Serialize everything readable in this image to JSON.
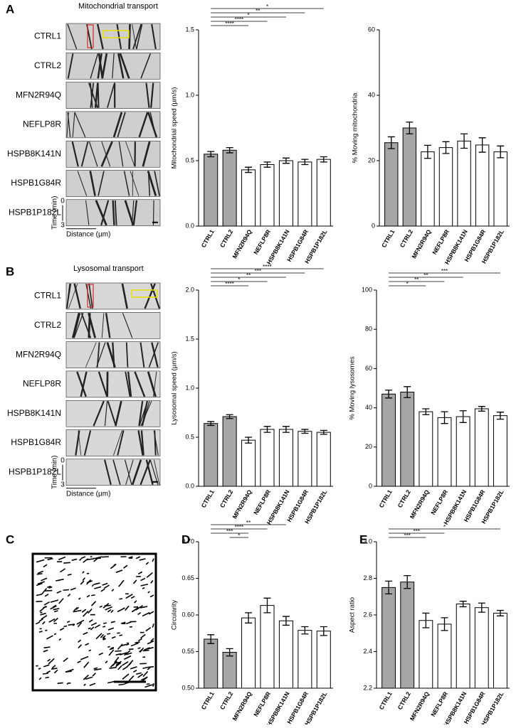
{
  "panel_letters": [
    "A",
    "B",
    "C",
    "D",
    "E"
  ],
  "kymographs": [
    {
      "title": "Mitochondrial transport",
      "rows": [
        "CTRL1",
        "CTRL2",
        "MFN2R94Q",
        "NEFLP8R",
        "HSPB8K141N",
        "HSPB1G84R",
        "HSPB1P182L"
      ]
    },
    {
      "title": "Lysosomal transport",
      "rows": [
        "CTRL1",
        "CTRL2",
        "MFN2R94Q",
        "NEFLP8R",
        "HSPB8K141N",
        "HSPB1G84R",
        "HSPB1P182L"
      ]
    }
  ],
  "kymo_axis": {
    "time": "Time (min)",
    "start": "0",
    "end": "3",
    "distance": "Distance (µm)"
  },
  "chart_data": [
    {
      "type": "bar",
      "ylabel": "Mitochondrial speed (µm/s)",
      "categories": [
        "CTRL1",
        "CTRL2",
        "MFN2R94Q",
        "NEFLP8R",
        "HSPB8K141N",
        "HSPB1G84R",
        "HSPB1P182L"
      ],
      "values": [
        0.55,
        0.58,
        0.43,
        0.47,
        0.5,
        0.49,
        0.51
      ],
      "errors": [
        0.02,
        0.02,
        0.02,
        0.02,
        0.02,
        0.02,
        0.02
      ],
      "colors": [
        "#a6a6a6",
        "#a6a6a6",
        "#ffffff",
        "#ffffff",
        "#ffffff",
        "#ffffff",
        "#ffffff"
      ],
      "ylim": [
        0,
        1.5
      ],
      "yticks": [
        {
          "value": 0,
          "label": "0.0"
        },
        0.5,
        {
          "value": 1,
          "label": "1.0"
        },
        1.5
      ],
      "significance": [
        {
          "label": "*",
          "from": "CTRL1",
          "to": "HSPB1P182L"
        },
        {
          "label": "**",
          "from": "CTRL1",
          "to": "HSPB1G84R"
        },
        {
          "label": "*",
          "from": "CTRL1",
          "to": "HSPB8K141N"
        },
        {
          "label": "****",
          "from": "CTRL1",
          "to": "NEFLP8R"
        },
        {
          "label": "****",
          "from": "CTRL1",
          "to": "MFN2R94Q"
        }
      ]
    },
    {
      "type": "bar",
      "ylabel": "% Moving mitochondria",
      "categories": [
        "CTRL1",
        "CTRL2",
        "MFN2R94Q",
        "NEFLP8R",
        "HSPB8K141N",
        "HSPB1G84R",
        "HSPB1P182L"
      ],
      "values": [
        25.5,
        30,
        22.7,
        24,
        26,
        24.8,
        22.7
      ],
      "errors": [
        1.8,
        1.8,
        2,
        1.8,
        2.2,
        2.2,
        1.8
      ],
      "colors": [
        "#a6a6a6",
        "#a6a6a6",
        "#ffffff",
        "#ffffff",
        "#ffffff",
        "#ffffff",
        "#ffffff"
      ],
      "ylim": [
        0,
        60
      ],
      "yticks": [
        0,
        20,
        40,
        60
      ],
      "significance": []
    },
    {
      "type": "bar",
      "ylabel": "Lysosomal speed (µm/s)",
      "categories": [
        "CTRL1",
        "CTRL2",
        "MFN2R94Q",
        "NEFLP8R",
        "HSPB8K141N",
        "HSPB1G84R",
        "HSPB1P182L"
      ],
      "values": [
        0.64,
        0.71,
        0.47,
        0.58,
        0.58,
        0.56,
        0.55
      ],
      "errors": [
        0.02,
        0.02,
        0.03,
        0.03,
        0.03,
        0.02,
        0.02
      ],
      "colors": [
        "#a6a6a6",
        "#a6a6a6",
        "#ffffff",
        "#ffffff",
        "#ffffff",
        "#ffffff",
        "#ffffff"
      ],
      "ylim": [
        0,
        2
      ],
      "yticks": [
        {
          "value": 0,
          "label": "0.0"
        },
        0.5,
        {
          "value": 1,
          "label": "1.0"
        },
        1.5,
        {
          "value": 2,
          "label": "2.0"
        }
      ],
      "significance": [
        {
          "label": "****",
          "from": "CTRL1",
          "to": "HSPB1P182L"
        },
        {
          "label": "***",
          "from": "CTRL1",
          "to": "HSPB1G84R"
        },
        {
          "label": "**",
          "from": "CTRL1",
          "to": "HSPB8K141N"
        },
        {
          "label": "*",
          "from": "CTRL1",
          "to": "NEFLP8R"
        },
        {
          "label": "****",
          "from": "CTRL1",
          "to": "MFN2R94Q"
        }
      ]
    },
    {
      "type": "bar",
      "ylabel": "% Moving lysosomes",
      "categories": [
        "CTRL1",
        "CTRL2",
        "MFN2R94Q",
        "NEFLP8R",
        "HSPB8K141N",
        "HSPB1G84R",
        "HSPB1P182L"
      ],
      "values": [
        47,
        48,
        38,
        35,
        35.5,
        39.5,
        36
      ],
      "errors": [
        2,
        2.8,
        1.5,
        3,
        3,
        1.2,
        1.8
      ],
      "colors": [
        "#a6a6a6",
        "#a6a6a6",
        "#ffffff",
        "#ffffff",
        "#ffffff",
        "#ffffff",
        "#ffffff"
      ],
      "ylim": [
        0,
        100
      ],
      "yticks": [
        0,
        20,
        40,
        60,
        80,
        100
      ],
      "significance": [
        {
          "label": "***",
          "from": "CTRL1",
          "to": "HSPB1P182L"
        },
        {
          "label": "**",
          "from": "CTRL1",
          "to": "HSPB8K141N"
        },
        {
          "label": "**",
          "from": "CTRL1",
          "to": "NEFLP8R"
        },
        {
          "label": "*",
          "from": "CTRL1",
          "to": "MFN2R94Q"
        }
      ]
    },
    {
      "type": "bar",
      "ylabel": "Circularity",
      "categories": [
        "CTRL1",
        "CTRL2",
        "MFN2R94Q",
        "NEFLP8R",
        "HSPB8K141N",
        "HSPB1G84R",
        "HSPB1P182L"
      ],
      "values": [
        0.567,
        0.549,
        0.596,
        0.613,
        0.592,
        0.579,
        0.578
      ],
      "errors": [
        0.006,
        0.005,
        0.007,
        0.01,
        0.006,
        0.005,
        0.006
      ],
      "colors": [
        "#a6a6a6",
        "#a6a6a6",
        "#ffffff",
        "#ffffff",
        "#ffffff",
        "#ffffff",
        "#ffffff"
      ],
      "ylim": [
        0.5,
        0.7
      ],
      "yticks": [
        {
          "value": 0.5,
          "label": "0.50"
        },
        0.55,
        {
          "value": 0.6,
          "label": "0.60"
        },
        0.65,
        {
          "value": 0.7,
          "label": "0.70"
        }
      ],
      "significance": [
        {
          "label": "**",
          "from": "CTRL1",
          "to": "HSPB8K141N"
        },
        {
          "label": "****",
          "from": "CTRL1",
          "to": "NEFLP8R"
        },
        {
          "label": "***",
          "from": "CTRL1",
          "to": "MFN2R94Q"
        },
        {
          "label": "*",
          "from": "CTRL2",
          "to": "MFN2R94Q"
        }
      ]
    },
    {
      "type": "bar",
      "ylabel": "Aspect ratio",
      "categories": [
        "CTRL1",
        "CTRL2",
        "MFN2R94Q",
        "NEFLP8R",
        "HSPB8K141N",
        "HSPB1G84R",
        "HSPB1P182L"
      ],
      "values": [
        2.75,
        2.78,
        2.57,
        2.55,
        2.66,
        2.64,
        2.61
      ],
      "errors": [
        0.035,
        0.035,
        0.04,
        0.035,
        0.015,
        0.025,
        0.015
      ],
      "colors": [
        "#a6a6a6",
        "#a6a6a6",
        "#ffffff",
        "#ffffff",
        "#ffffff",
        "#ffffff",
        "#ffffff"
      ],
      "ylim": [
        2.2,
        3
      ],
      "yticks": [
        2.2,
        2.4,
        2.6,
        2.8,
        {
          "value": 3,
          "label": "3.0"
        }
      ],
      "significance": [
        {
          "label": "*",
          "from": "CTRL1",
          "to": "HSPB1P182L"
        },
        {
          "label": "***",
          "from": "CTRL1",
          "to": "NEFLP8R"
        },
        {
          "label": "***",
          "from": "CTRL1",
          "to": "MFN2R94Q"
        }
      ]
    }
  ]
}
